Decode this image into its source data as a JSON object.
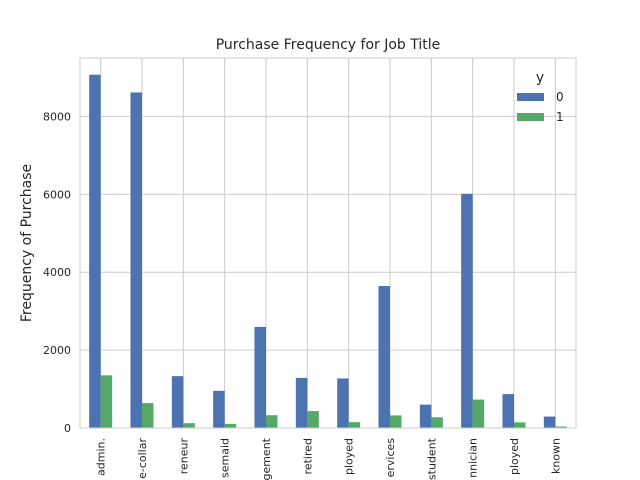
{
  "chart_data": {
    "type": "bar",
    "title": "Purchase Frequency for Job Title",
    "xlabel": "",
    "ylabel": "Frequency of Purchase",
    "categories": [
      "admin.",
      "e-collar",
      "reneur",
      "semaid",
      "gement",
      "retired",
      "ployed",
      "ervices",
      "student",
      "nnician",
      "ployed",
      "known"
    ],
    "series": [
      {
        "name": "0",
        "color": "#4c72b0",
        "values": [
          9070,
          8616,
          1332,
          954,
          2596,
          1286,
          1272,
          3646,
          600,
          6013,
          870,
          293
        ]
      },
      {
        "name": "1",
        "color": "#55a868",
        "values": [
          1352,
          638,
          124,
          106,
          328,
          434,
          149,
          323,
          275,
          730,
          144,
          37
        ]
      }
    ],
    "legend_title": "y",
    "legend_position": "top-right",
    "ylim": [
      0,
      9500
    ],
    "yticks": [
      0,
      2000,
      4000,
      6000,
      8000
    ],
    "grid": true
  }
}
